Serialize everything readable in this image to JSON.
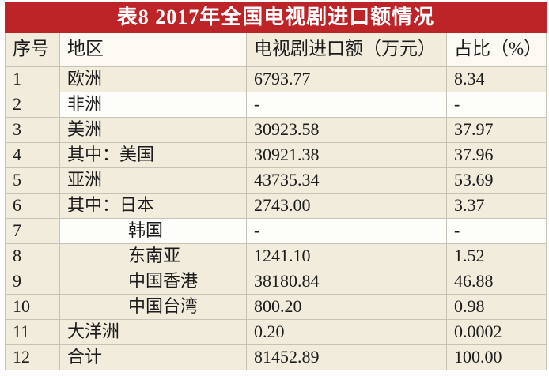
{
  "title": "表8  2017年全国电视剧进口额情况",
  "columns": [
    "序号",
    "地区",
    "电视剧进口额（万元）",
    "占比（%）"
  ],
  "rows": [
    {
      "no": "1",
      "region": "欧洲",
      "amount": "6793.77",
      "share": "8.34",
      "indent": false,
      "white": false
    },
    {
      "no": "2",
      "region": "非洲",
      "amount": "-",
      "share": "-",
      "indent": false,
      "white": true
    },
    {
      "no": "3",
      "region": "美洲",
      "amount": "30923.58",
      "share": "37.97",
      "indent": false,
      "white": false
    },
    {
      "no": "4",
      "region": "其中：美国",
      "amount": "30921.38",
      "share": "37.96",
      "indent": false,
      "white": false
    },
    {
      "no": "5",
      "region": "亚洲",
      "amount": "43735.34",
      "share": "53.69",
      "indent": false,
      "white": false
    },
    {
      "no": "6",
      "region": "其中：日本",
      "amount": "2743.00",
      "share": "3.37",
      "indent": false,
      "white": false
    },
    {
      "no": "7",
      "region": "韩国",
      "amount": "-",
      "share": "-",
      "indent": true,
      "white": true
    },
    {
      "no": "8",
      "region": "东南亚",
      "amount": "1241.10",
      "share": "1.52",
      "indent": true,
      "white": false
    },
    {
      "no": "9",
      "region": "中国香港",
      "amount": "38180.84",
      "share": "46.88",
      "indent": true,
      "white": false
    },
    {
      "no": "10",
      "region": "中国台湾",
      "amount": "800.20",
      "share": "0.98",
      "indent": true,
      "white": false
    },
    {
      "no": "11",
      "region": "大洋洲",
      "amount": "0.20",
      "share": "0.0002",
      "indent": false,
      "white": false
    },
    {
      "no": "12",
      "region": "合计",
      "amount": "81452.89",
      "share": "100.00",
      "indent": false,
      "white": false
    }
  ],
  "colors": {
    "banner_red": "#bd2428",
    "cell_cream": "#f1ecdc",
    "highlight_white": "#fdfdfa",
    "grid_line": "#c6c2b6",
    "title_text": "#ffffff",
    "body_text": "#1c1c1c"
  }
}
